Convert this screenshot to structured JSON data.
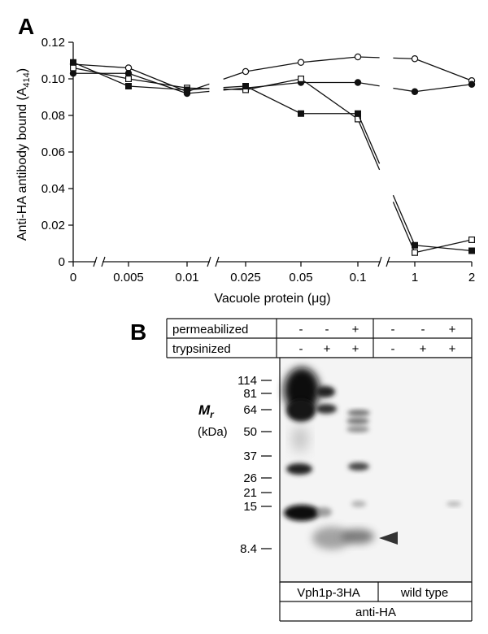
{
  "panel_a": {
    "letter": "A"
  },
  "panel_b": {
    "letter": "B",
    "rows": [
      {
        "label": "permeabilized",
        "signs": [
          "-",
          "-",
          "+",
          "-",
          "-",
          "+"
        ]
      },
      {
        "label": "trypsinized",
        "signs": [
          "-",
          "+",
          "+",
          "-",
          "+",
          "+"
        ]
      }
    ],
    "mr_label": "M",
    "mr_sub": "r",
    "kda_label": "(kDa)",
    "markers": [
      "114",
      "81",
      "64",
      "50",
      "37",
      "26",
      "21",
      "15",
      "8.4"
    ],
    "groups": [
      "Vph1p-3HA",
      "wild type"
    ],
    "antibody": "anti-HA"
  },
  "chart_data": {
    "type": "line",
    "xlabel": "Vacuole protein (μg)",
    "ylabel_main": "Anti-HA antibody bound (A",
    "ylabel_sub": "414",
    "ylabel_close": ")",
    "categories": [
      "0",
      "0.005",
      "0.01",
      "0.025",
      "0.05",
      "0.1",
      "1",
      "2"
    ],
    "ylim": [
      0,
      0.12
    ],
    "yticks": [
      "0",
      "0.02",
      "0.04",
      "0.06",
      "0.08",
      "0.10",
      "0.12"
    ],
    "grid": false,
    "axis_break_marks": "between 0 and 0.005, between 0.01 and 0.025, between 0.1 and 1",
    "series": [
      {
        "marker": "open-circle",
        "values": [
          0.108,
          0.106,
          0.093,
          0.104,
          0.109,
          0.112,
          0.111,
          0.099
        ]
      },
      {
        "marker": "filled-circle",
        "values": [
          0.103,
          0.103,
          0.092,
          0.095,
          0.098,
          0.098,
          0.093,
          0.097
        ]
      },
      {
        "marker": "open-square",
        "values": [
          0.106,
          0.1,
          0.095,
          0.094,
          0.1,
          0.078,
          0.005,
          0.012
        ]
      },
      {
        "marker": "filled-square",
        "values": [
          0.109,
          0.096,
          0.094,
          0.096,
          0.081,
          0.081,
          0.009,
          0.006
        ]
      }
    ]
  }
}
